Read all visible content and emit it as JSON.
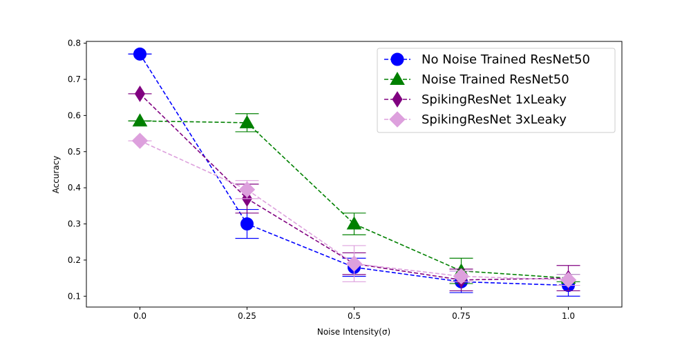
{
  "chart_data": {
    "type": "line",
    "xlabel": "Noise Intensity(σ)",
    "ylabel": "Accuracy",
    "x": [
      0.0,
      0.25,
      0.5,
      0.75,
      1.0
    ],
    "x_tick_labels": [
      "0.0",
      "0.25",
      "0.5",
      "0.75",
      "1.0"
    ],
    "y_ticks": [
      0.1,
      0.2,
      0.3,
      0.4,
      0.5,
      0.6,
      0.7,
      0.8
    ],
    "y_tick_labels": [
      "0.1",
      "0.2",
      "0.3",
      "0.4",
      "0.5",
      "0.6",
      "0.7",
      "0.8"
    ],
    "xlim": [
      -0.125,
      1.125
    ],
    "ylim": [
      0.07,
      0.805
    ],
    "grid": false,
    "legend_position": "top-right",
    "series": [
      {
        "name": "No Noise Trained ResNet50",
        "color": "#0000ff",
        "marker": "circle",
        "line_style": "dashed",
        "values": [
          0.77,
          0.3,
          0.18,
          0.14,
          0.13
        ],
        "errors": [
          0.0,
          0.04,
          0.025,
          0.03,
          0.03
        ]
      },
      {
        "name": "Noise Trained ResNet50",
        "color": "#008000",
        "marker": "triangle",
        "line_style": "dashed",
        "values": [
          0.585,
          0.58,
          0.3,
          0.17,
          0.15
        ],
        "errors": [
          0.0,
          0.025,
          0.03,
          0.035,
          0.01
        ]
      },
      {
        "name": "SpikingResNet 1xLeaky",
        "color": "#800080",
        "marker": "thin-diamond",
        "line_style": "dashed",
        "values": [
          0.66,
          0.37,
          0.19,
          0.145,
          0.15
        ],
        "errors": [
          0.0,
          0.04,
          0.03,
          0.03,
          0.035
        ]
      },
      {
        "name": "SpikingResNet 3xLeaky",
        "color": "#dda0dd",
        "marker": "diamond",
        "line_style": "dashed",
        "values": [
          0.53,
          0.395,
          0.19,
          0.155,
          0.145
        ],
        "errors": [
          0.0,
          0.025,
          0.05,
          0.015,
          0.015
        ]
      }
    ]
  }
}
